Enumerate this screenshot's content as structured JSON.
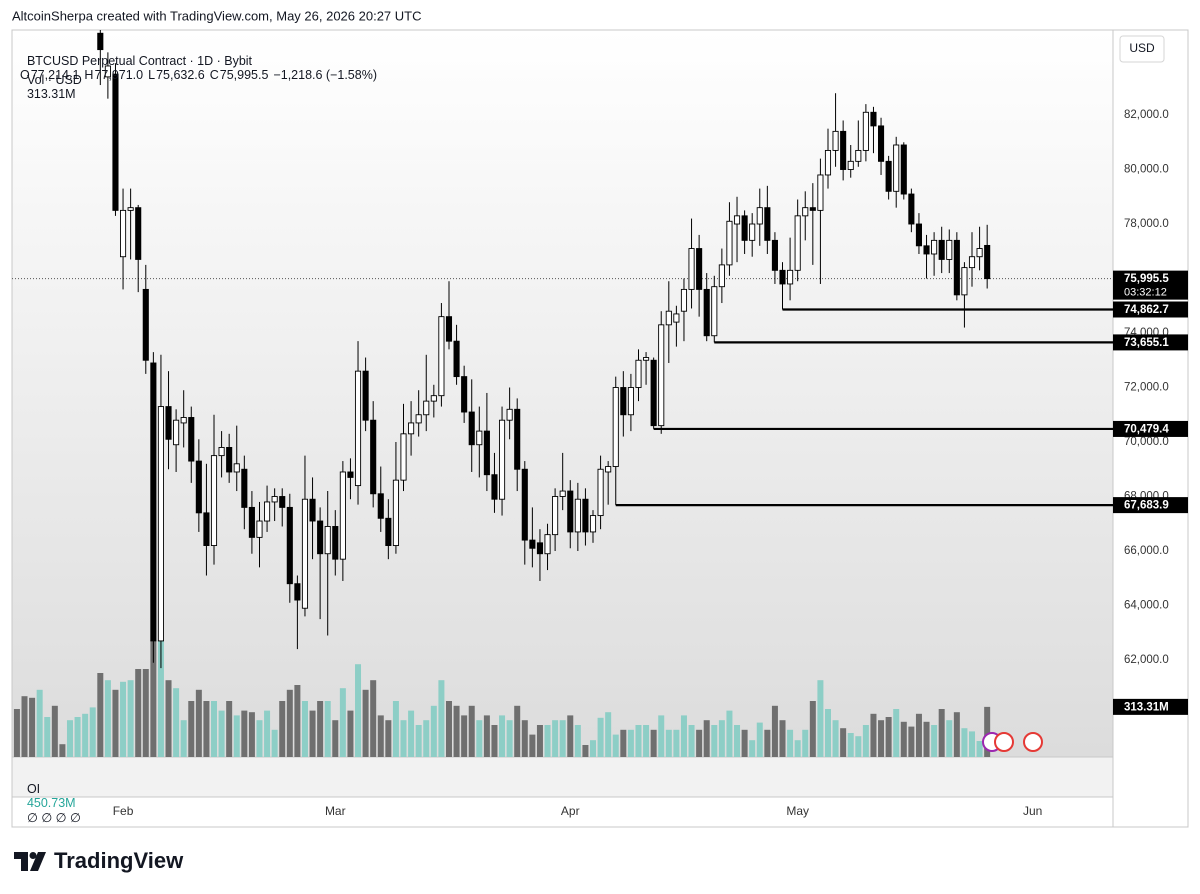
{
  "attribution": "AltcoinSherpa created with TradingView.com, May 26, 2026 20:27 UTC",
  "brand": "TradingView",
  "chart_data": {
    "type": "candlestick",
    "title": "BTCUSD Perpetual Contract · 1D · Bybit",
    "y_axis_label": "USD",
    "categories": [
      null,
      null,
      null,
      null,
      null,
      null,
      null,
      null,
      null,
      null,
      null,
      null,
      null,
      null,
      "Feb",
      null,
      null,
      null,
      null,
      null,
      null,
      null,
      null,
      null,
      null,
      null,
      null,
      null,
      null,
      null,
      null,
      null,
      null,
      null,
      null,
      null,
      null,
      null,
      null,
      null,
      null,
      null,
      "Mar",
      null,
      null,
      null,
      null,
      null,
      null,
      null,
      null,
      null,
      null,
      null,
      null,
      null,
      null,
      null,
      null,
      null,
      null,
      null,
      null,
      null,
      null,
      null,
      null,
      null,
      null,
      null,
      null,
      null,
      null,
      "Apr",
      null,
      null,
      null,
      null,
      null,
      null,
      null,
      null,
      null,
      null,
      null,
      null,
      null,
      null,
      null,
      null,
      null,
      null,
      null,
      null,
      null,
      null,
      null,
      null,
      null,
      null,
      null,
      null,
      null,
      "May",
      null,
      null,
      null,
      null,
      null,
      null,
      null,
      null,
      null,
      null,
      null,
      null,
      null,
      null,
      null,
      null,
      null,
      null,
      null,
      null,
      null,
      null,
      null,
      null,
      null,
      null,
      null,
      null,
      null,
      null,
      "Jun"
    ],
    "open": [
      null,
      null,
      null,
      null,
      null,
      null,
      null,
      null,
      null,
      null,
      null,
      85000,
      83400,
      83500,
      76800,
      78500,
      78600,
      75600,
      72900,
      62700,
      71300,
      69900,
      70700,
      70900,
      69300,
      67400,
      66200,
      69500,
      69800,
      68900,
      69000,
      67600,
      66500,
      67100,
      67800,
      68000,
      67600,
      64800,
      63900,
      67900,
      67100,
      65900,
      66900,
      65700,
      68900,
      68400,
      72600,
      70800,
      68100,
      67200,
      66200,
      68600,
      70300,
      70700,
      71000,
      71500,
      71700,
      74600,
      73700,
      72400,
      71100,
      69900,
      70400,
      68800,
      67900,
      70800,
      71200,
      69000,
      66400,
      66300,
      65900,
      66600,
      68000,
      68200,
      66700,
      67900,
      66700,
      67300,
      68900,
      69100,
      72000,
      71000,
      72000,
      73000,
      73000,
      70600,
      74300,
      74400,
      74800,
      75600,
      77100,
      75600,
      73900,
      75700,
      76500,
      78000,
      78300,
      77400,
      78000,
      78600,
      77400,
      76300,
      75800,
      76300,
      78300,
      78600,
      78500,
      79800,
      80700,
      81400,
      80000,
      80300,
      80700,
      82100,
      81600,
      80300,
      79200,
      80900,
      79100,
      78000,
      77200,
      76900,
      77400,
      76700,
      77400,
      75400,
      76400,
      76800,
      77214.1,
      null,
      null,
      null,
      null,
      null,
      null
    ],
    "high": [
      null,
      null,
      null,
      null,
      null,
      null,
      null,
      null,
      null,
      null,
      null,
      85300,
      84300,
      83900,
      79300,
      79300,
      78700,
      76500,
      73300,
      73200,
      72600,
      71200,
      71900,
      71300,
      70100,
      69200,
      71000,
      70400,
      70300,
      70600,
      69500,
      68200,
      67800,
      68400,
      68300,
      68300,
      68100,
      65100,
      69500,
      68700,
      67600,
      68200,
      67500,
      69300,
      69400,
      73700,
      73100,
      71500,
      69100,
      67900,
      70000,
      71400,
      71500,
      71900,
      73200,
      72100,
      75100,
      75900,
      74300,
      72800,
      72300,
      71300,
      71800,
      69600,
      71300,
      72000,
      71600,
      69300,
      67600,
      66800,
      67000,
      68300,
      69600,
      68600,
      68500,
      68300,
      67500,
      69500,
      69300,
      72400,
      72600,
      72500,
      73400,
      73300,
      73100,
      74800,
      75900,
      75000,
      76000,
      78200,
      77600,
      76200,
      76100,
      77100,
      78800,
      79000,
      78500,
      78400,
      79300,
      79400,
      77700,
      76600,
      77500,
      78900,
      79200,
      79500,
      80400,
      81500,
      82800,
      81800,
      80900,
      81800,
      82400,
      82300,
      81900,
      80500,
      81200,
      81000,
      79300,
      78400,
      77600,
      77700,
      77900,
      77800,
      77700,
      76600,
      77700,
      77900,
      77971,
      null,
      null,
      null,
      null,
      null,
      null
    ],
    "low": [
      null,
      null,
      null,
      null,
      null,
      null,
      null,
      null,
      null,
      null,
      null,
      83100,
      82600,
      78300,
      75600,
      76700,
      75500,
      72500,
      61900,
      61700,
      69000,
      68900,
      69800,
      68500,
      66700,
      65100,
      65500,
      68700,
      68500,
      68200,
      66800,
      65900,
      65400,
      66700,
      67100,
      66900,
      64100,
      62400,
      63600,
      65700,
      63500,
      62900,
      65100,
      64900,
      67900,
      67700,
      70400,
      67600,
      66700,
      65700,
      65900,
      68200,
      69500,
      70200,
      70400,
      70900,
      71300,
      73400,
      72100,
      70700,
      68900,
      68700,
      68200,
      67400,
      67300,
      70100,
      68200,
      65500,
      65400,
      64900,
      65300,
      66000,
      67500,
      66100,
      66000,
      66200,
      66300,
      66800,
      67700,
      67683.9,
      70200,
      70400,
      71500,
      72100,
      70479.4,
      70300,
      72900,
      73500,
      73700,
      74900,
      74600,
      73700,
      73655.1,
      75100,
      76100,
      76600,
      76900,
      76800,
      77200,
      76900,
      75800,
      74862.7,
      75200,
      75900,
      77400,
      76500,
      75800,
      79300,
      80100,
      79600,
      79700,
      80100,
      80300,
      80600,
      79800,
      78900,
      78600,
      78900,
      77700,
      76900,
      76000,
      76100,
      76200,
      76200,
      75200,
      74200,
      75700,
      76300,
      75632.6,
      null,
      null,
      null,
      null,
      null,
      null
    ],
    "close": [
      null,
      null,
      null,
      null,
      null,
      null,
      null,
      null,
      null,
      null,
      null,
      84400,
      83800,
      78500,
      78500,
      78600,
      76700,
      73000,
      62700,
      71300,
      70100,
      70800,
      70900,
      69300,
      67400,
      66200,
      69500,
      69800,
      68900,
      69200,
      67600,
      66500,
      67100,
      67800,
      68000,
      67600,
      64800,
      64200,
      67900,
      67100,
      65900,
      66900,
      65700,
      68900,
      68700,
      72600,
      70800,
      68100,
      67200,
      66200,
      68600,
      70300,
      70700,
      71000,
      71500,
      71700,
      74600,
      73700,
      72400,
      71100,
      69900,
      70400,
      68800,
      67900,
      70800,
      71200,
      69000,
      66400,
      66100,
      65900,
      66600,
      68000,
      68200,
      66700,
      67900,
      66700,
      67300,
      69000,
      69100,
      72000,
      71000,
      72000,
      73000,
      73100,
      70600,
      74300,
      74800,
      74700,
      75600,
      77100,
      75600,
      73900,
      75700,
      76500,
      78100,
      78300,
      77400,
      78000,
      78600,
      77400,
      76300,
      75800,
      76300,
      78300,
      78600,
      78500,
      79800,
      80700,
      81400,
      80000,
      80300,
      80700,
      82100,
      81600,
      80300,
      79200,
      80900,
      79100,
      78000,
      77200,
      76900,
      77400,
      76700,
      77400,
      75400,
      76400,
      76800,
      77100,
      75995.5,
      null,
      null,
      null,
      null,
      null,
      null
    ],
    "candle_colors": {
      "up": "#ffffff",
      "down": "#000000",
      "wick": "#000000"
    },
    "volume": {
      "name": "Vol · USD",
      "values": [
        300,
        380,
        370,
        420,
        250,
        320,
        80,
        230,
        250,
        270,
        310,
        525,
        480,
        420,
        470,
        480,
        550,
        550,
        730,
        730,
        480,
        430,
        230,
        350,
        420,
        350,
        350,
        290,
        350,
        260,
        290,
        280,
        230,
        290,
        170,
        350,
        420,
        450,
        350,
        290,
        350,
        350,
        230,
        430,
        290,
        580,
        420,
        480,
        260,
        230,
        350,
        230,
        290,
        200,
        230,
        320,
        480,
        350,
        320,
        260,
        320,
        230,
        260,
        200,
        260,
        230,
        320,
        230,
        140,
        200,
        200,
        230,
        230,
        260,
        200,
        75,
        105,
        245,
        280,
        140,
        170,
        170,
        200,
        200,
        170,
        260,
        170,
        170,
        260,
        200,
        170,
        230,
        200,
        230,
        290,
        200,
        170,
        105,
        215,
        170,
        320,
        230,
        170,
        105,
        170,
        350,
        480,
        300,
        230,
        180,
        150,
        130,
        200,
        270,
        230,
        250,
        300,
        220,
        190,
        270,
        220,
        200,
        300,
        230,
        280,
        180,
        160,
        100,
        313.31,
        null,
        null,
        null,
        null,
        null,
        null
      ],
      "value_labels": [
        null,
        null,
        null,
        null,
        null,
        null,
        null,
        null,
        null,
        null,
        null,
        null,
        null,
        null,
        null,
        null,
        null,
        null,
        null,
        null,
        null,
        null,
        null,
        null,
        null,
        null,
        null,
        null,
        null,
        null,
        null,
        null,
        null,
        null,
        null,
        null,
        null,
        null,
        null,
        null,
        null,
        null,
        null,
        null,
        null,
        null,
        null,
        null,
        null,
        null,
        null,
        null,
        null,
        null,
        null,
        null,
        null,
        null,
        null,
        null,
        null,
        null,
        null,
        null,
        null,
        null,
        null,
        null,
        null,
        null,
        null,
        null,
        null,
        null,
        null,
        null,
        null,
        null,
        null,
        null,
        null,
        null,
        null,
        null,
        null,
        null,
        null,
        null,
        null,
        null,
        null,
        null,
        null,
        null,
        null,
        null,
        null,
        null,
        null,
        null,
        null,
        null,
        null,
        null,
        null,
        null,
        null,
        null,
        null,
        null,
        null,
        null,
        null,
        null,
        null,
        null,
        null,
        null,
        null,
        null,
        null,
        null,
        null,
        null,
        null,
        null,
        null,
        null,
        "313.31M",
        null,
        null,
        null,
        null,
        null,
        null
      ],
      "colors": [
        "#6f6f6f",
        "#6f6f6f",
        "#6f6f6f",
        "#8dcec6",
        "#8dcec6",
        "#6f6f6f",
        "#6f6f6f",
        "#8dcec6",
        "#8dcec6",
        "#8dcec6",
        "#8dcec6",
        "#6f6f6f",
        "#8dcec6",
        "#6f6f6f",
        "#8dcec6",
        "#8dcec6",
        "#6f6f6f",
        "#6f6f6f",
        "#6f6f6f",
        "#8dcec6",
        "#6f6f6f",
        "#8dcec6",
        "#8dcec6",
        "#6f6f6f",
        "#6f6f6f",
        "#6f6f6f",
        "#8dcec6",
        "#8dcec6",
        "#6f6f6f",
        "#8dcec6",
        "#6f6f6f",
        "#6f6f6f",
        "#8dcec6",
        "#8dcec6",
        "#8dcec6",
        "#6f6f6f",
        "#6f6f6f",
        "#6f6f6f",
        "#8dcec6",
        "#6f6f6f",
        "#6f6f6f",
        "#8dcec6",
        "#6f6f6f",
        "#8dcec6",
        "#6f6f6f",
        "#8dcec6",
        "#6f6f6f",
        "#6f6f6f",
        "#6f6f6f",
        "#6f6f6f",
        "#8dcec6",
        "#8dcec6",
        "#8dcec6",
        "#8dcec6",
        "#8dcec6",
        "#8dcec6",
        "#8dcec6",
        "#6f6f6f",
        "#6f6f6f",
        "#6f6f6f",
        "#6f6f6f",
        "#8dcec6",
        "#6f6f6f",
        "#6f6f6f",
        "#8dcec6",
        "#8dcec6",
        "#6f6f6f",
        "#6f6f6f",
        "#6f6f6f",
        "#6f6f6f",
        "#8dcec6",
        "#8dcec6",
        "#8dcec6",
        "#6f6f6f",
        "#8dcec6",
        "#6f6f6f",
        "#8dcec6",
        "#8dcec6",
        "#8dcec6",
        "#8dcec6",
        "#6f6f6f",
        "#8dcec6",
        "#8dcec6",
        "#8dcec6",
        "#6f6f6f",
        "#8dcec6",
        "#8dcec6",
        "#8dcec6",
        "#8dcec6",
        "#8dcec6",
        "#6f6f6f",
        "#6f6f6f",
        "#8dcec6",
        "#8dcec6",
        "#8dcec6",
        "#8dcec6",
        "#6f6f6f",
        "#8dcec6",
        "#8dcec6",
        "#6f6f6f",
        "#6f6f6f",
        "#6f6f6f",
        "#8dcec6",
        "#8dcec6",
        "#8dcec6",
        "#6f6f6f",
        "#8dcec6",
        "#8dcec6",
        "#8dcec6",
        "#6f6f6f",
        "#8dcec6",
        "#8dcec6",
        "#8dcec6",
        "#6f6f6f",
        "#6f6f6f",
        "#6f6f6f",
        "#8dcec6",
        "#6f6f6f",
        "#6f6f6f",
        "#6f6f6f",
        "#6f6f6f",
        "#8dcec6",
        "#6f6f6f",
        "#8dcec6",
        "#6f6f6f",
        "#8dcec6",
        "#8dcec6",
        "#8dcec6",
        "#6f6f6f",
        null,
        null,
        null,
        null,
        null,
        null
      ]
    },
    "ylim": [
      58440,
      85120
    ],
    "yticks": [
      {
        "value": 62000,
        "label": "62,000.0"
      },
      {
        "value": 64000,
        "label": "64,000.0"
      },
      {
        "value": 66000,
        "label": "66,000.0"
      },
      {
        "value": 68000,
        "label": "68,000.0"
      },
      {
        "value": 70000,
        "label": "70,000.0"
      },
      {
        "value": 72000,
        "label": "72,000.0"
      },
      {
        "value": 74000,
        "label": "74,000.0"
      },
      {
        "value": 76000,
        "label": "76,000.0"
      },
      {
        "value": 78000,
        "label": "78,000.0"
      },
      {
        "value": 80000,
        "label": "80,000.0"
      },
      {
        "value": 82000,
        "label": "82,000.0"
      }
    ],
    "grid": false,
    "price_tag": {
      "value": 75995.5,
      "label": "75,995.5",
      "countdown": "03:32:12"
    },
    "levels": [
      {
        "value": 74862.7,
        "label": "74,862.7",
        "start": 101
      },
      {
        "value": 73655.1,
        "label": "73,655.1",
        "start": 92
      },
      {
        "value": 70479.4,
        "label": "70,479.4",
        "start": 84
      },
      {
        "value": 67683.9,
        "label": "67,683.9",
        "start": 79
      }
    ],
    "legend": {
      "fields": [
        {
          "key": "O",
          "text": "77,214.1"
        },
        {
          "key": "H",
          "text": "77,971.0"
        },
        {
          "key": "L",
          "text": "75,632.6"
        },
        {
          "key": "C",
          "text": "75,995.5"
        }
      ],
      "change": "−1,218.6 (−1.58%)"
    },
    "oi": {
      "label": "OI",
      "value": "450.73M",
      "extras": "∅ ∅ ∅ ∅"
    }
  }
}
